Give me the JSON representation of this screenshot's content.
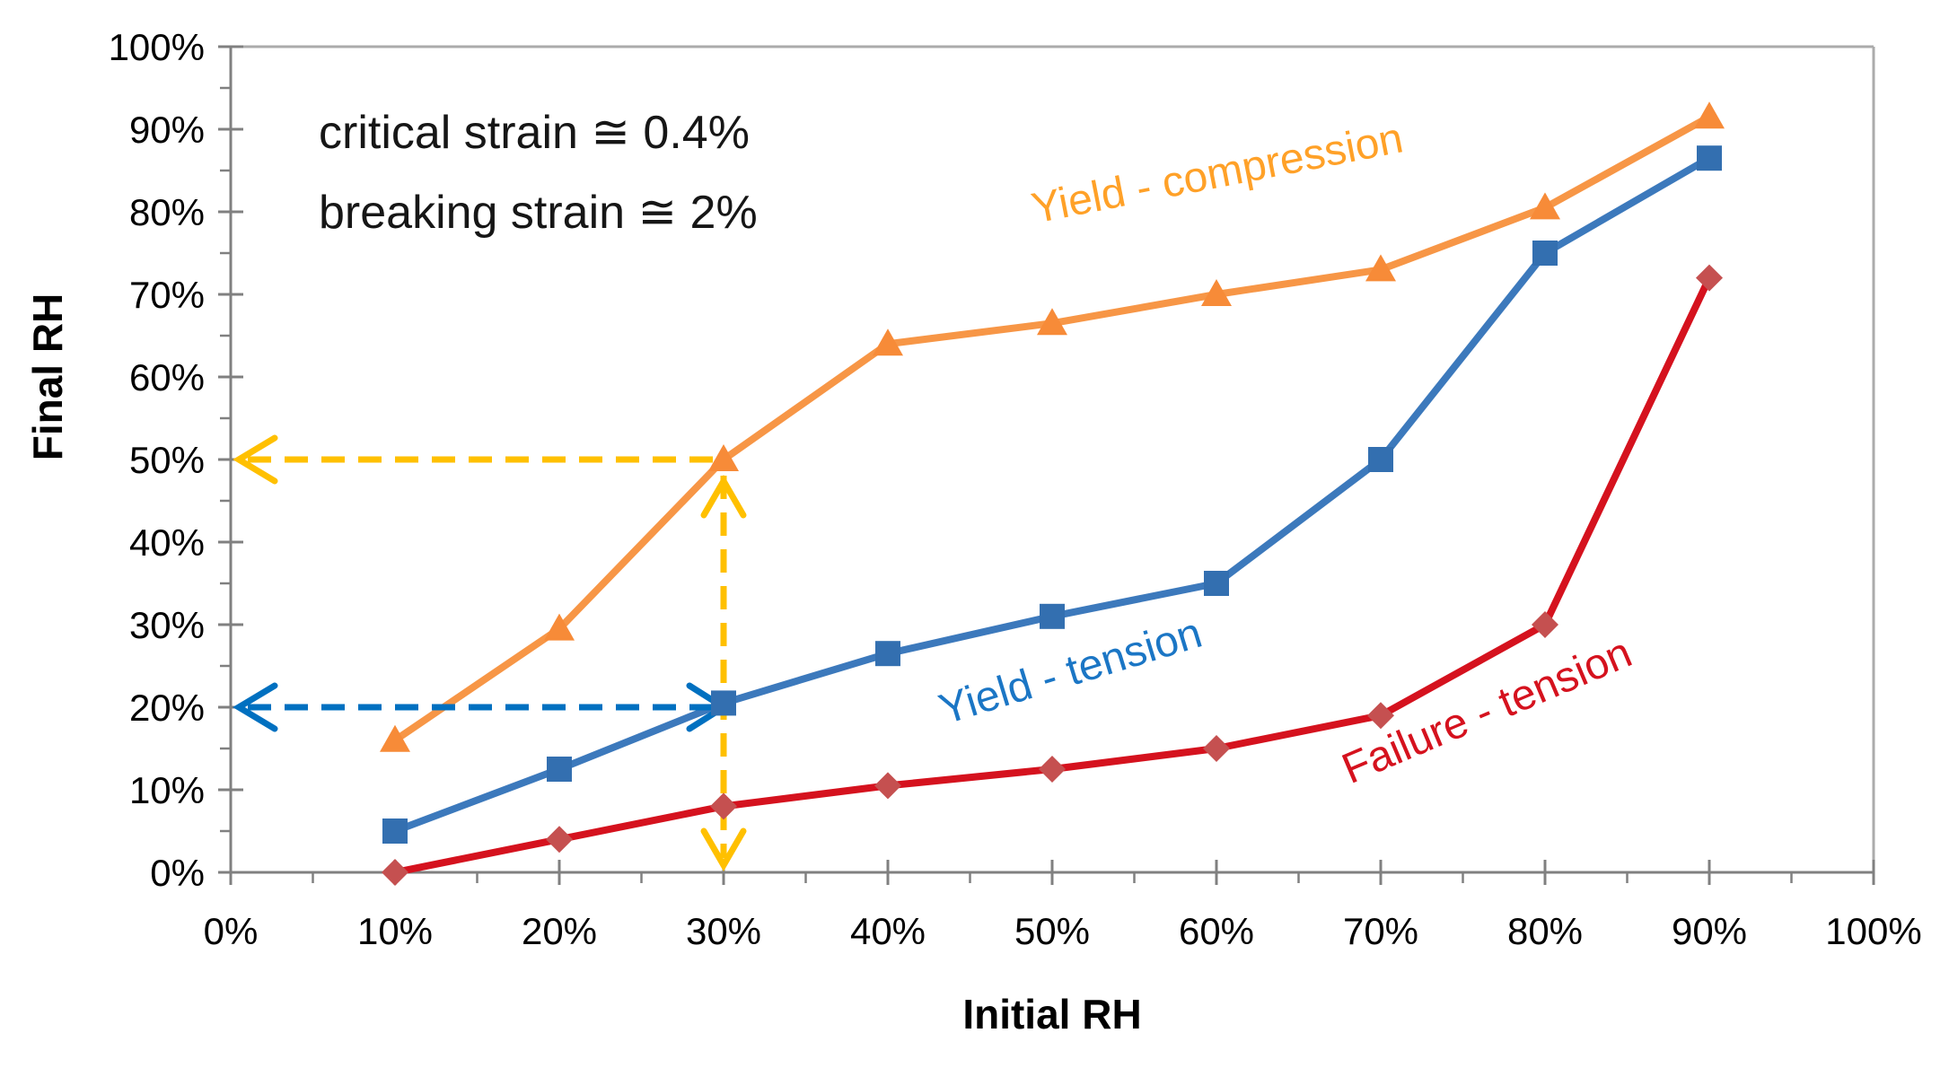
{
  "chart_data": {
    "type": "line",
    "title": "",
    "xlabel": "Initial RH",
    "ylabel": "Final RH",
    "xlim": [
      0,
      100
    ],
    "ylim": [
      0,
      100
    ],
    "grid": false,
    "legend_position": "inline-labels",
    "x_tick_labels": [
      "0%",
      "10%",
      "20%",
      "30%",
      "40%",
      "50%",
      "60%",
      "70%",
      "80%",
      "90%",
      "100%"
    ],
    "y_tick_labels": [
      "0%",
      "10%",
      "20%",
      "30%",
      "40%",
      "50%",
      "60%",
      "70%",
      "80%",
      "90%",
      "100%"
    ],
    "x": [
      10,
      20,
      30,
      40,
      50,
      60,
      70,
      80,
      90
    ],
    "series": [
      {
        "name": "Yield - compression",
        "marker": "triangle",
        "line_color": "#F79646",
        "marker_color": "#F78B38",
        "label_color": "#FFA128",
        "values": [
          16,
          29.5,
          50,
          64,
          66.5,
          70,
          73,
          80.5,
          91.5
        ]
      },
      {
        "name": "Yield - tension",
        "marker": "square",
        "line_color": "#3C79BC",
        "marker_color": "#336FB0",
        "label_color": "#1B76C5",
        "values": [
          5,
          12.5,
          20.5,
          26.5,
          31,
          35,
          50,
          75,
          86.5
        ]
      },
      {
        "name": "Failure - tension",
        "marker": "diamond",
        "line_color": "#D5121E",
        "marker_color": "#C55050",
        "label_color": "#D5121E",
        "values": [
          0,
          4,
          8,
          10.5,
          12.5,
          15,
          19,
          30,
          72
        ]
      }
    ],
    "annotations": [
      "critical strain ≅ 0.4%",
      "breaking strain ≅ 2%"
    ],
    "guides": [
      {
        "name": "compression-guide",
        "color": "#FFC000",
        "point_x": 30,
        "point_y": 50,
        "horizontal_arrow_to_y_axis": true,
        "vertical_arrow_to_x_axis": true
      },
      {
        "name": "tension-guide",
        "color": "#0070C0",
        "point_x": 30,
        "point_y": 20,
        "horizontal_arrow_to_y_axis": true,
        "vertical_arrow_to_x_axis": false
      }
    ],
    "colors": {
      "axis": "#808080",
      "plot_border": "#ABABAB",
      "tick_text": "#000000",
      "annotation_text": "#161616"
    }
  }
}
